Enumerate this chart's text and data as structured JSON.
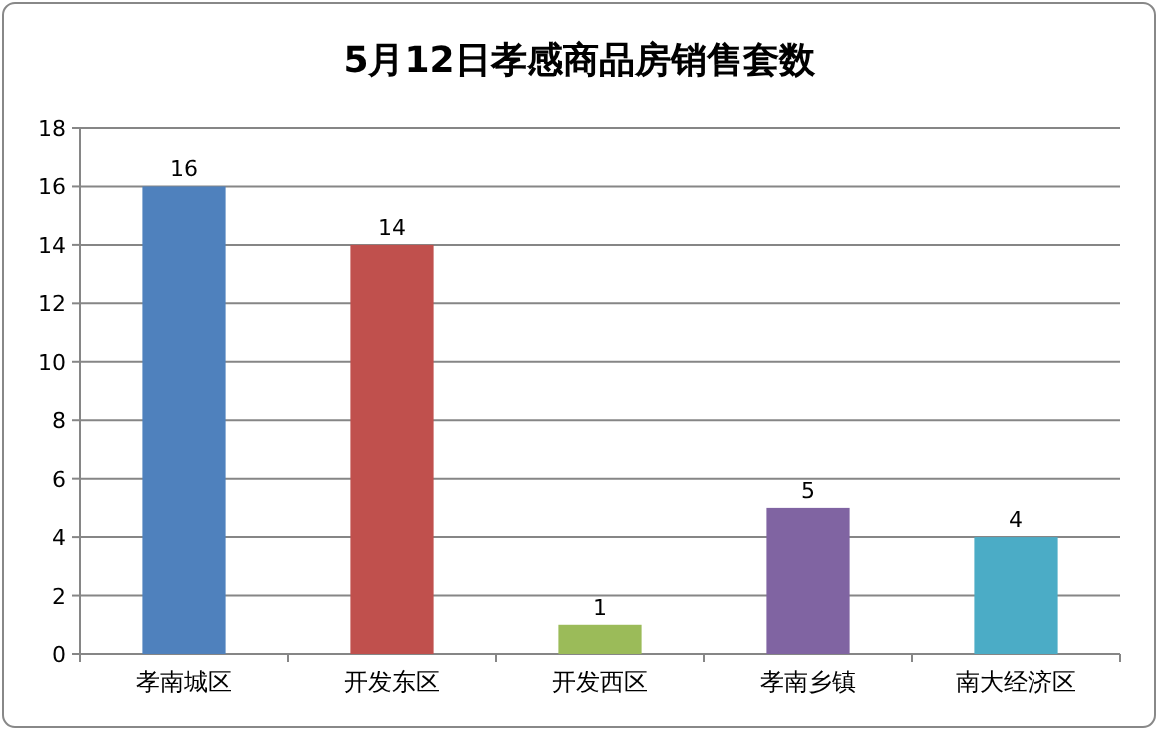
{
  "chart_data": {
    "type": "bar",
    "title": "5月12日孝感商品房销售套数",
    "categories": [
      "孝南城区",
      "开发东区",
      "开发西区",
      "孝南乡镇",
      "南大经济区"
    ],
    "values": [
      16,
      14,
      1,
      5,
      4
    ],
    "colors": [
      "#4f81bd",
      "#c0504d",
      "#9bbb59",
      "#8064a2",
      "#4bacc6"
    ],
    "ylim": [
      0,
      18
    ],
    "yticks": [
      0,
      2,
      4,
      6,
      8,
      10,
      12,
      14,
      16,
      18
    ],
    "grid": "y",
    "data_labels": true
  }
}
